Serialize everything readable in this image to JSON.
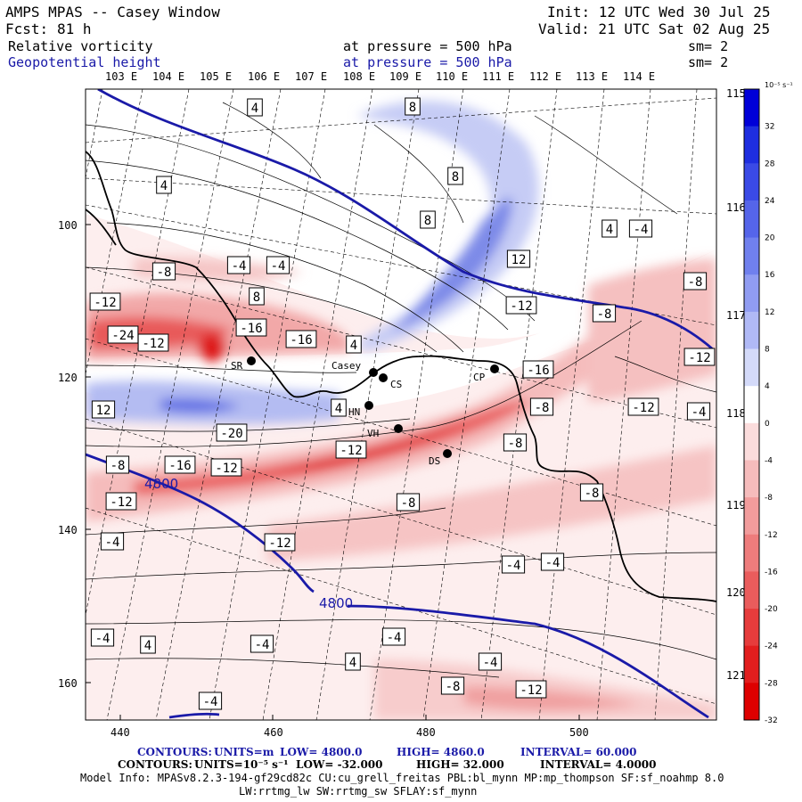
{
  "header": {
    "title": "AMPS MPAS -- Casey Window",
    "fcst_label": "Fcst:",
    "fcst_value": "81 h",
    "init": "Init: 12 UTC Wed 30 Jul 25",
    "valid": "Valid: 21 UTC Sat 02 Aug 25",
    "field1": "Relative vorticity",
    "field1_level": "at pressure =  500 hPa",
    "field1_sm": "sm= 2",
    "field2": "Geopotential height",
    "field2_level": "at pressure =  500 hPa",
    "field2_sm": "sm= 2"
  },
  "colors": {
    "height_contour": "#1a1aa8",
    "coast": "#000000",
    "positive": "#2a2ad0",
    "negative": "#e02020"
  },
  "lon_top": [
    "103 E",
    "104 E",
    "105 E",
    "106 E",
    "107 E",
    "108 E",
    "109 E",
    "110 E",
    "111 E",
    "112 E",
    "113 E",
    "114 E"
  ],
  "lon_right": [
    "115 E",
    "116 E",
    "117 E",
    "118 E",
    "119 E",
    "120 E",
    "121 E"
  ],
  "y_ticks": [
    "100",
    "120",
    "140",
    "160"
  ],
  "x_ticks": [
    "440",
    "460",
    "480",
    "500"
  ],
  "colorbar": {
    "unit": "10⁻⁵ s⁻¹",
    "labels": [
      "32",
      "28",
      "24",
      "20",
      "16",
      "12",
      "8",
      "4",
      "0",
      "-4",
      "-8",
      "-12",
      "-16",
      "-20",
      "-24",
      "-28",
      "-32"
    ],
    "colors": [
      "#0000d8",
      "#1e2ee0",
      "#3a4ae6",
      "#5565ea",
      "#7080ee",
      "#909cf2",
      "#b0b9f6",
      "#d4daf9",
      "#ffffff",
      "#fbdcdc",
      "#f6bcbc",
      "#f29c9c",
      "#ee7c7c",
      "#ea5c5c",
      "#e63c3c",
      "#e21e1e",
      "#de0000"
    ]
  },
  "stations": [
    {
      "name": "SR"
    },
    {
      "name": "Casey"
    },
    {
      "name": "CS"
    },
    {
      "name": "HN"
    },
    {
      "name": "VH"
    },
    {
      "name": "DS"
    },
    {
      "name": "CP"
    }
  ],
  "contour_labels": [
    "4",
    "8",
    "4",
    "8",
    "8",
    "4",
    "-4",
    "12",
    "-8",
    "-4",
    "-4",
    "-8",
    "-12",
    "8",
    "-12",
    "-8",
    "-24",
    "-16",
    "-16",
    "4",
    "-12",
    "-16",
    "-12",
    "12",
    "4",
    "-20",
    "-12",
    "-8",
    "-12",
    "-8",
    "-16",
    "-12",
    "-8",
    "-8",
    "-12",
    "-4",
    "-12",
    "-4",
    "-8",
    "-4",
    "-4",
    "-4",
    "4",
    "-4",
    "-4",
    "4",
    "-4",
    "-4",
    "-8",
    "-12"
  ],
  "height_labels": [
    "4800",
    "4800"
  ],
  "footer": {
    "contours1_label": "CONTOURS:",
    "contours1_units": "UNITS=m",
    "contours1_low": "LOW=  4800.0",
    "contours1_high": "HIGH=  4860.0",
    "contours1_interval": "INTERVAL=  60.000",
    "contours2_label": "CONTOURS:",
    "contours2_units": "UNITS=10⁻⁵ s⁻¹",
    "contours2_low": "LOW= -32.000",
    "contours2_high": "HIGH=  32.000",
    "contours2_interval": "INTERVAL=   4.0000",
    "model_info": "Model Info: MPASv8.2.3-194-gf29cd82c CU:cu_grell_freitas PBL:bl_mynn MP:mp_thompson SF:sf_noahmp 8.0",
    "model_info2": "LW:rrtmg_lw SW:rrtmg_sw SFLAY:sf_mynn"
  }
}
